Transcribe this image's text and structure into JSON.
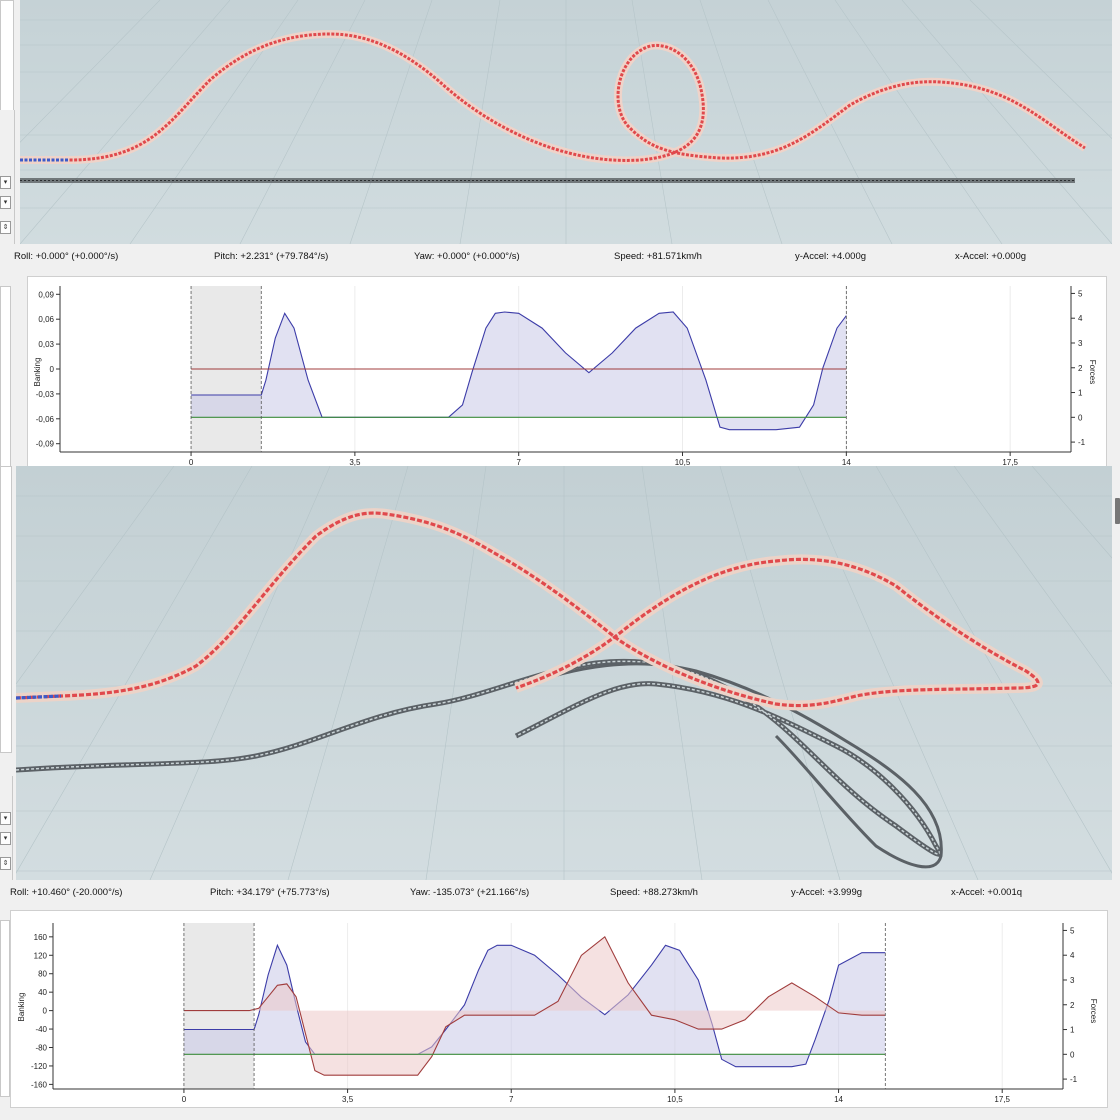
{
  "top_view": {
    "status": {
      "roll": "Roll: +0.000° (+0.000°/s)",
      "pitch": "Pitch: +2.231° (+79.784°/s)",
      "yaw": "Yaw: +0.000° (+0.000°/s)",
      "speed": "Speed: +81.571km/h",
      "y_accel": "y-Accel: +4.000g",
      "x_accel": "x-Accel: +0.000g"
    }
  },
  "chart_top_axes": {
    "y_left_label": "Banking",
    "y_right_label": "Forces",
    "x_ticks": [
      "0",
      "3,5",
      "7",
      "10,5",
      "14",
      "17,5"
    ],
    "y_left_ticks": [
      "0,09",
      "0,06",
      "0,03",
      "0",
      "-0,03",
      "-0,06",
      "-0,09"
    ],
    "y_right_ticks": [
      "5",
      "4",
      "3",
      "2",
      "1",
      "0",
      "-1"
    ]
  },
  "bottom_view": {
    "status": {
      "roll": "Roll: +10.460° (-20.000°/s)",
      "pitch": "Pitch: +34.179° (+75.773°/s)",
      "yaw": "Yaw: -135.073° (+21.166°/s)",
      "speed": "Speed: +88.273km/h",
      "y_accel": "y-Accel: +3.999g",
      "x_accel": "x-Accel: +0.001q"
    }
  },
  "chart_bottom_axes": {
    "y_left_label": "Banking",
    "y_right_label": "Forces",
    "x_ticks": [
      "0",
      "3,5",
      "7",
      "10,5",
      "14",
      "17,5"
    ],
    "y_left_ticks": [
      "160",
      "120",
      "80",
      "40",
      "0",
      "-40",
      "-80",
      "-120",
      "-160"
    ],
    "y_right_ticks": [
      "5",
      "4",
      "3",
      "2",
      "1",
      "0",
      "-1"
    ]
  },
  "colors": {
    "banking_line": "#3c3ca8",
    "banking_fill": "#c8c8e8",
    "roll_line": "#a03c3c",
    "roll_fill": "#ecc8c8",
    "baseline": "#3c8c3c",
    "track_red": "#e05a5a",
    "track_blue": "#3c5ac8",
    "grid_bg": "#ccd8dc"
  },
  "chart_data": [
    {
      "type": "line",
      "xlabel": "",
      "ylabel": "Banking",
      "ylabel_right": "Forces",
      "xlim": [
        -2.8,
        18.8
      ],
      "ylim": [
        -0.1,
        0.1
      ],
      "ylim_right": [
        -1.4,
        5.3
      ],
      "selected_range": [
        0,
        1.5
      ],
      "series": [
        {
          "color": "#3c3ca8",
          "axis": "right",
          "x": [
            0,
            0.5,
            1,
            1.4,
            1.5,
            1.6,
            1.8,
            2,
            2.2,
            2.5,
            2.8,
            3,
            3.5,
            4,
            5,
            5.5,
            5.8,
            6,
            6.3,
            6.5,
            6.7,
            7,
            7.5,
            8,
            8.5,
            9,
            9.5,
            10,
            10.3,
            10.6,
            11,
            11.3,
            11.5,
            11.8,
            12,
            12.5,
            13,
            13.3,
            13.5,
            13.8,
            14
          ],
          "y": [
            0.9,
            0.9,
            0.9,
            0.9,
            0.9,
            1.5,
            3.2,
            4.2,
            3.6,
            1.5,
            0,
            0,
            0,
            0,
            0,
            0,
            0.5,
            1.8,
            3.6,
            4.2,
            4.25,
            4.2,
            3.6,
            2.6,
            1.8,
            2.6,
            3.6,
            4.2,
            4.25,
            3.6,
            1.5,
            -0.4,
            -0.5,
            -0.5,
            -0.5,
            -0.5,
            -0.4,
            0.5,
            2.0,
            3.6,
            4.1
          ]
        },
        {
          "color": "#a03c3c",
          "axis": "left",
          "x": [
            0,
            14
          ],
          "y": [
            0,
            0
          ]
        },
        {
          "color": "#3c8c3c",
          "axis": "right",
          "x": [
            0,
            14
          ],
          "y": [
            0,
            0
          ]
        }
      ]
    },
    {
      "type": "line",
      "xlabel": "",
      "ylabel": "Banking",
      "ylabel_right": "Forces",
      "xlim": [
        -2.8,
        18.8
      ],
      "ylim": [
        -170,
        190
      ],
      "ylim_right": [
        -1.4,
        5.3
      ],
      "selected_range": [
        0,
        1.5
      ],
      "series": [
        {
          "color": "#3c3ca8",
          "axis": "right",
          "x": [
            0,
            0.5,
            1,
            1.4,
            1.5,
            1.6,
            1.8,
            2,
            2.2,
            2.4,
            2.6,
            2.8,
            3,
            3.5,
            4,
            5,
            5.3,
            5.6,
            6,
            6.3,
            6.5,
            6.7,
            7,
            7.5,
            8,
            8.5,
            9,
            9.5,
            10,
            10.3,
            10.6,
            11,
            11.3,
            11.5,
            11.8,
            12,
            12.5,
            13,
            13.3,
            13.5,
            13.8,
            14,
            14.5,
            15
          ],
          "y": [
            1.0,
            1.0,
            1.0,
            1.0,
            1.0,
            1.6,
            3.2,
            4.4,
            3.6,
            2.0,
            0.5,
            0,
            0,
            0,
            0,
            0,
            0.3,
            1.0,
            2.0,
            3.4,
            4.2,
            4.4,
            4.4,
            4.0,
            3.2,
            2.3,
            1.6,
            2.4,
            3.6,
            4.4,
            4.2,
            3.0,
            1.2,
            -0.2,
            -0.5,
            -0.5,
            -0.5,
            -0.5,
            -0.4,
            0.6,
            2.2,
            3.6,
            4.1,
            4.1
          ]
        },
        {
          "color": "#a03c3c",
          "axis": "left",
          "x": [
            0,
            1.4,
            1.6,
            1.8,
            2,
            2.2,
            2.4,
            2.6,
            2.8,
            3,
            3.5,
            4,
            4.5,
            5,
            5.3,
            5.6,
            6,
            6.5,
            7,
            7.5,
            8,
            8.5,
            9,
            9.5,
            10,
            10.5,
            11,
            11.5,
            12,
            12.5,
            13,
            13.5,
            14,
            14.5,
            15
          ],
          "y": [
            0,
            0,
            5,
            30,
            55,
            58,
            30,
            -50,
            -130,
            -140,
            -140,
            -140,
            -140,
            -140,
            -100,
            -35,
            -10,
            -10,
            -10,
            -10,
            20,
            120,
            160,
            60,
            -10,
            -20,
            -40,
            -40,
            -20,
            30,
            60,
            30,
            -5,
            -10,
            -10
          ]
        },
        {
          "color": "#3c8c3c",
          "axis": "right",
          "x": [
            0,
            15
          ],
          "y": [
            0,
            0
          ]
        }
      ]
    }
  ]
}
